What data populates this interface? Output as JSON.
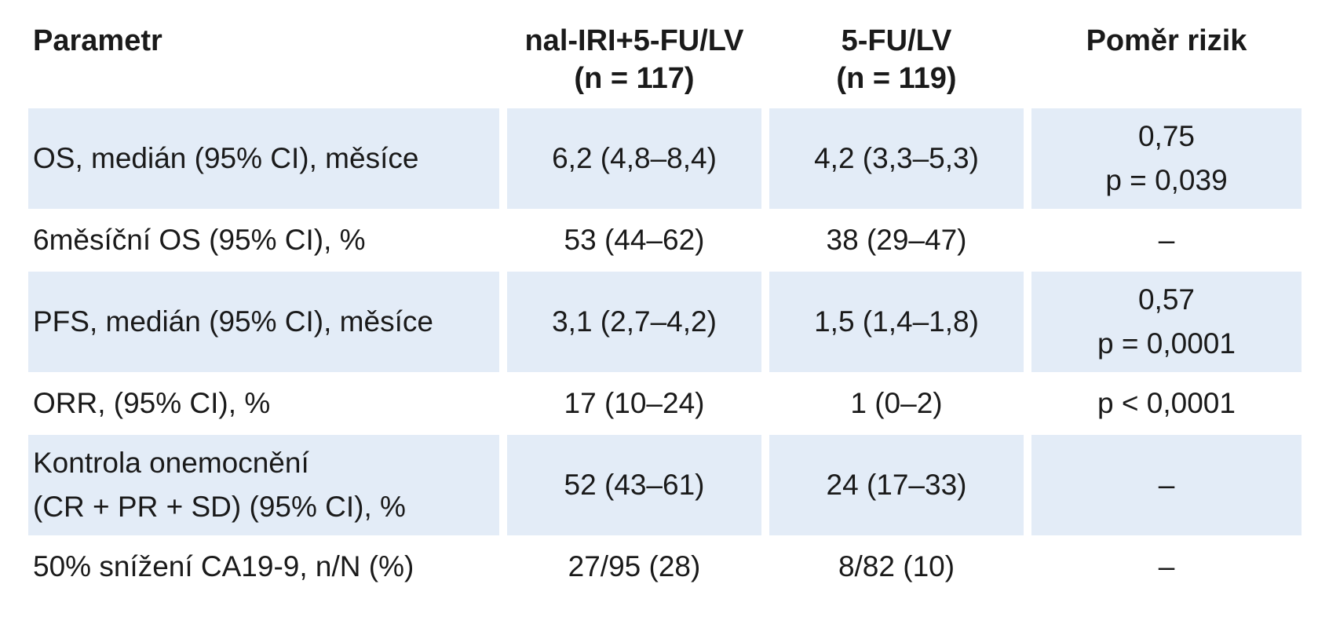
{
  "table": {
    "headers": {
      "parameter": "Parametr",
      "arm1_line1": "nal-IRI+5-FU/LV",
      "arm1_line2": "(n = 117)",
      "arm2_line1": "5-FU/LV",
      "arm2_line2": "(n = 119)",
      "ratio": "Poměr rizik"
    },
    "rows": [
      {
        "param_line1": "OS, medián (95% CI), měsíce",
        "param_line2": "",
        "arm1": "6,2 (4,8–8,4)",
        "arm2": "4,2 (3,3–5,3)",
        "ratio_line1": "0,75",
        "ratio_line2": "p = 0,039"
      },
      {
        "param_line1": "6měsíční OS (95% CI), %",
        "param_line2": "",
        "arm1": "53 (44–62)",
        "arm2": "38 (29–47)",
        "ratio_line1": "–",
        "ratio_line2": ""
      },
      {
        "param_line1": "PFS, medián (95% CI), měsíce",
        "param_line2": "",
        "arm1": "3,1 (2,7–4,2)",
        "arm2": "1,5 (1,4–1,8)",
        "ratio_line1": "0,57",
        "ratio_line2": "p = 0,0001"
      },
      {
        "param_line1": "ORR, (95% CI), %",
        "param_line2": "",
        "arm1": "17 (10–24)",
        "arm2": "1 (0–2)",
        "ratio_line1": "p < 0,0001",
        "ratio_line2": ""
      },
      {
        "param_line1": "Kontrola onemocnění",
        "param_line2": "(CR + PR + SD) (95% CI), %",
        "arm1": "52 (43–61)",
        "arm2": "24 (17–33)",
        "ratio_line1": "–",
        "ratio_line2": ""
      },
      {
        "param_line1": "50% snížení CA19-9, n/N (%)",
        "param_line2": "",
        "arm1": "27/95 (28)",
        "arm2": "8/82 (10)",
        "ratio_line1": "–",
        "ratio_line2": ""
      }
    ]
  }
}
